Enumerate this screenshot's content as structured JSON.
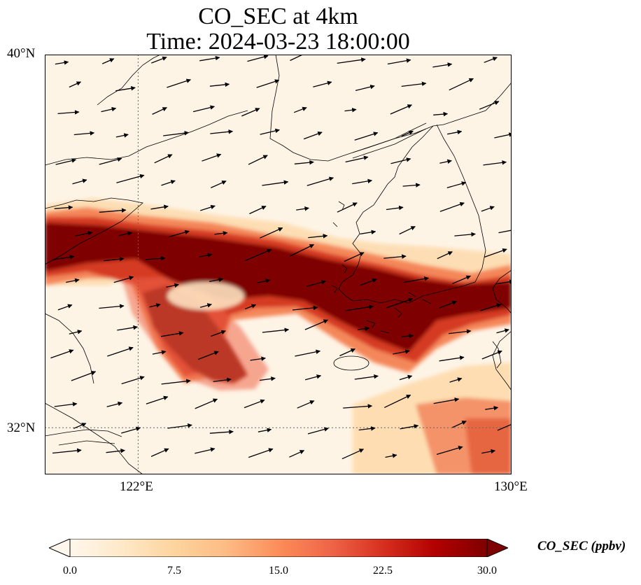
{
  "title_line1": "CO_SEC at 4km",
  "title_line2": "Time: 2024-03-23 18:00:00",
  "map": {
    "extent": {
      "lon": [
        120,
        130
      ],
      "lat": [
        31,
        40
      ]
    },
    "lat_labels": [
      {
        "text": "40°N",
        "value": 40
      },
      {
        "text": "32°N",
        "value": 32
      }
    ],
    "lon_labels": [
      {
        "text": "122°E",
        "value": 122
      },
      {
        "text": "130°E",
        "value": 130
      }
    ],
    "gridlines": "dotted",
    "band_core": [
      [
        120,
        36.2
      ],
      [
        121.5,
        36.1
      ],
      [
        123,
        35.8
      ],
      [
        124.5,
        35.5
      ],
      [
        125.5,
        35.0
      ],
      [
        126.5,
        34.6
      ],
      [
        127.3,
        34.7
      ],
      [
        128.3,
        34.3
      ],
      [
        129.3,
        34.2
      ],
      [
        130,
        34.3
      ]
    ],
    "lobe_core": [
      [
        122,
        34.5
      ],
      [
        122.8,
        33.9
      ],
      [
        123.4,
        33.5
      ]
    ],
    "se_plume_core": [
      [
        128,
        31.6
      ],
      [
        129,
        31.4
      ],
      [
        130,
        31.8
      ]
    ]
  },
  "colorbar": {
    "title": "CO_SEC (ppbv)",
    "min": 0,
    "max": 30,
    "ticks": [
      "0.0",
      "7.5",
      "15.0",
      "22.5",
      "30.0"
    ],
    "colors": [
      "#fff7ec",
      "#fee8c8",
      "#fdd49e",
      "#fdbb84",
      "#fc8d59",
      "#ef6548",
      "#d7301f",
      "#b30000",
      "#7f0000"
    ],
    "extend": "both"
  }
}
